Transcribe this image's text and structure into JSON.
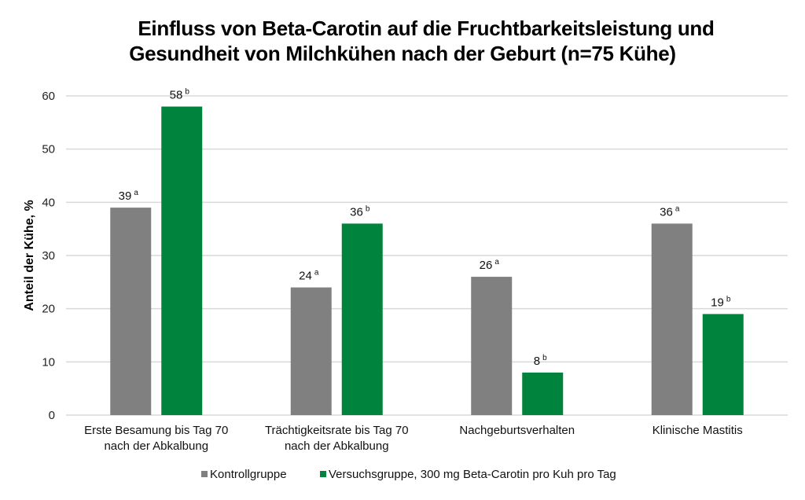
{
  "chart_data": {
    "type": "bar",
    "title": "Einfluss von Beta-Carotin auf die Fruchtbarkeitsleistung und Gesundheit von Milchkühen nach der Geburt (n=75 Kühe)",
    "title_lines": [
      "Einfluss von Beta-Carotin auf die Fruchtbarkeitsleistung und",
      "Gesundheit von Milchkühen nach der Geburt (n=75 Kühe)"
    ],
    "xlabel": "",
    "ylabel": "Anteil der Kühe, %",
    "ylim": [
      0,
      60
    ],
    "yticks": [
      0,
      10,
      20,
      30,
      40,
      50,
      60
    ],
    "grid": true,
    "legend_position": "bottom",
    "categories": [
      [
        "Erste Besamung bis Tag 70",
        "nach der Abkalbung"
      ],
      [
        "Trächtigkeitsrate bis Tag 70",
        "nach der Abkalbung"
      ],
      [
        "Nachgeburtsverhalten"
      ],
      [
        "Klinische Mastitis"
      ]
    ],
    "series": [
      {
        "name": "Kontrollgruppe",
        "color": "#808080",
        "values": [
          39,
          24,
          26,
          36
        ],
        "superscripts": [
          "a",
          "a",
          "a",
          "a"
        ]
      },
      {
        "name": "Versuchsgruppe, 300 mg Beta-Carotin pro Kuh pro Tag",
        "color": "#00843d",
        "values": [
          58,
          36,
          8,
          19
        ],
        "superscripts": [
          "b",
          "b",
          "b",
          "b"
        ]
      }
    ]
  }
}
